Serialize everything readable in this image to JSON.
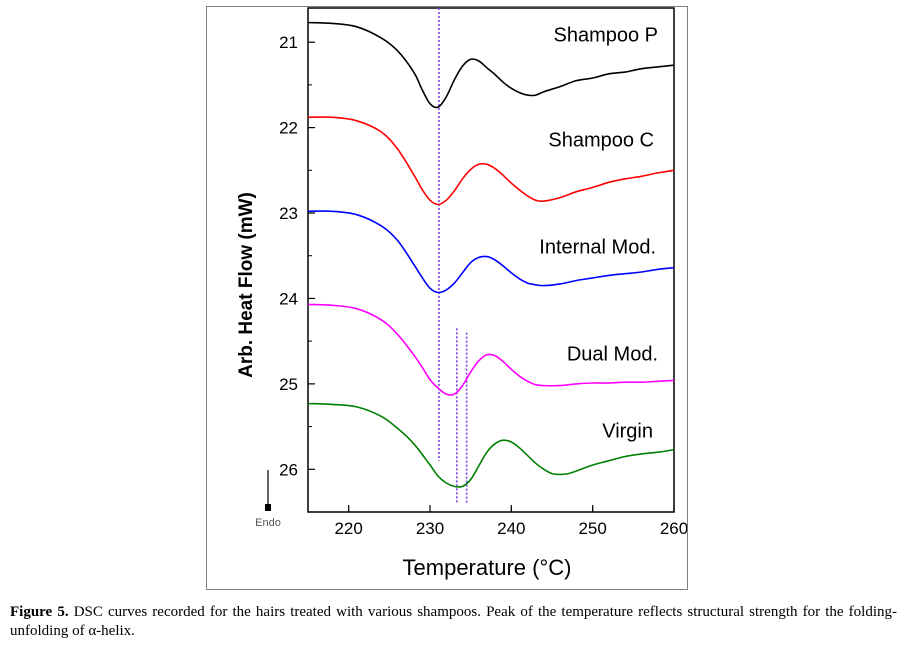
{
  "chart_data": {
    "type": "line",
    "xlabel": "Temperature (°C)",
    "ylabel": "Arb. Heat Flow (mW)",
    "xlim": [
      215,
      260
    ],
    "ylim": [
      20.6,
      26.5
    ],
    "y_inverted": true,
    "x_ticks": [
      220,
      230,
      240,
      250,
      260
    ],
    "y_ticks": [
      21,
      22,
      23,
      24,
      25,
      26
    ],
    "grid": false,
    "endo_label": "Endo",
    "series": [
      {
        "name": "Shampoo P",
        "color": "#000000",
        "x": [
          215,
          218,
          221,
          224,
          226,
          228,
          229,
          230,
          231,
          232,
          233,
          234,
          235,
          236,
          237,
          238,
          239,
          240,
          241,
          242,
          243,
          244,
          246,
          248,
          250,
          252,
          254,
          256,
          258,
          260
        ],
        "y": [
          20.77,
          20.78,
          20.82,
          20.95,
          21.1,
          21.35,
          21.55,
          21.72,
          21.76,
          21.64,
          21.44,
          21.28,
          21.2,
          21.22,
          21.3,
          21.38,
          21.47,
          21.54,
          21.59,
          21.62,
          21.62,
          21.58,
          21.52,
          21.45,
          21.42,
          21.37,
          21.35,
          21.31,
          21.29,
          21.27
        ]
      },
      {
        "name": "Shampoo C",
        "color": "#ff0000",
        "x": [
          215,
          218,
          221,
          224,
          226,
          228,
          229,
          230,
          231,
          232,
          233,
          234,
          235,
          236,
          237,
          238,
          239,
          240,
          241,
          242,
          243,
          244,
          246,
          248,
          250,
          252,
          254,
          256,
          258,
          260
        ],
        "y": [
          21.88,
          21.88,
          21.92,
          22.05,
          22.25,
          22.55,
          22.72,
          22.85,
          22.9,
          22.85,
          22.74,
          22.6,
          22.49,
          22.43,
          22.43,
          22.48,
          22.56,
          22.65,
          22.73,
          22.8,
          22.85,
          22.86,
          22.82,
          22.75,
          22.7,
          22.64,
          22.6,
          22.57,
          22.53,
          22.5
        ]
      },
      {
        "name": "Internal Mod.",
        "color": "#0000ff",
        "x": [
          215,
          218,
          221,
          224,
          226,
          228,
          229,
          230,
          231,
          232,
          233,
          234,
          235,
          236,
          237,
          238,
          239,
          240,
          241,
          242,
          243,
          244,
          246,
          248,
          250,
          252,
          254,
          256,
          258,
          260
        ],
        "y": [
          22.98,
          22.98,
          23.02,
          23.15,
          23.32,
          23.6,
          23.75,
          23.88,
          23.93,
          23.9,
          23.82,
          23.7,
          23.58,
          23.52,
          23.51,
          23.55,
          23.62,
          23.7,
          23.77,
          23.82,
          23.84,
          23.85,
          23.83,
          23.79,
          23.76,
          23.73,
          23.71,
          23.69,
          23.66,
          23.64
        ]
      },
      {
        "name": "Dual Mod.",
        "color": "#ff00ff",
        "x": [
          215,
          218,
          221,
          224,
          226,
          228,
          229,
          230,
          231,
          232,
          233,
          234,
          235,
          236,
          237,
          238,
          239,
          240,
          241,
          242,
          243,
          244,
          246,
          248,
          250,
          252,
          254,
          256,
          258,
          260
        ],
        "y": [
          24.07,
          24.08,
          24.12,
          24.25,
          24.42,
          24.66,
          24.8,
          24.95,
          25.05,
          25.12,
          25.12,
          25.02,
          24.86,
          24.73,
          24.66,
          24.67,
          24.74,
          24.83,
          24.91,
          24.97,
          25.01,
          25.02,
          25.02,
          25.0,
          24.99,
          24.99,
          24.98,
          24.98,
          24.97,
          24.96
        ]
      },
      {
        "name": "Virgin",
        "color": "#008000",
        "x": [
          215,
          218,
          221,
          224,
          226,
          228,
          230,
          231,
          232,
          233,
          234,
          235,
          236,
          237,
          238,
          239,
          240,
          241,
          242,
          243,
          244,
          245,
          246,
          247,
          248,
          250,
          252,
          254,
          256,
          258,
          260
        ],
        "y": [
          25.23,
          25.24,
          25.27,
          25.38,
          25.52,
          25.7,
          25.95,
          26.08,
          26.16,
          26.2,
          26.2,
          26.12,
          25.96,
          25.8,
          25.7,
          25.66,
          25.68,
          25.75,
          25.84,
          25.93,
          26.0,
          26.05,
          26.06,
          26.05,
          26.02,
          25.95,
          25.9,
          25.85,
          25.82,
          25.8,
          25.77
        ]
      }
    ],
    "reference_lines": [
      {
        "x": 231.1,
        "y_from": 20.6,
        "y_to": 25.9,
        "color": "#7b3fe4"
      },
      {
        "x": 233.3,
        "y_from": 24.35,
        "y_to": 26.4,
        "color": "#7b3fe4"
      },
      {
        "x": 234.5,
        "y_from": 24.4,
        "y_to": 26.4,
        "color": "#7b3fe4"
      }
    ]
  },
  "caption": {
    "label": "Figure 5.",
    "text": "DSC curves recorded for the hairs treated with various shampoos. Peak of the temperature reflects structural strength for the folding-unfolding of α-helix."
  }
}
